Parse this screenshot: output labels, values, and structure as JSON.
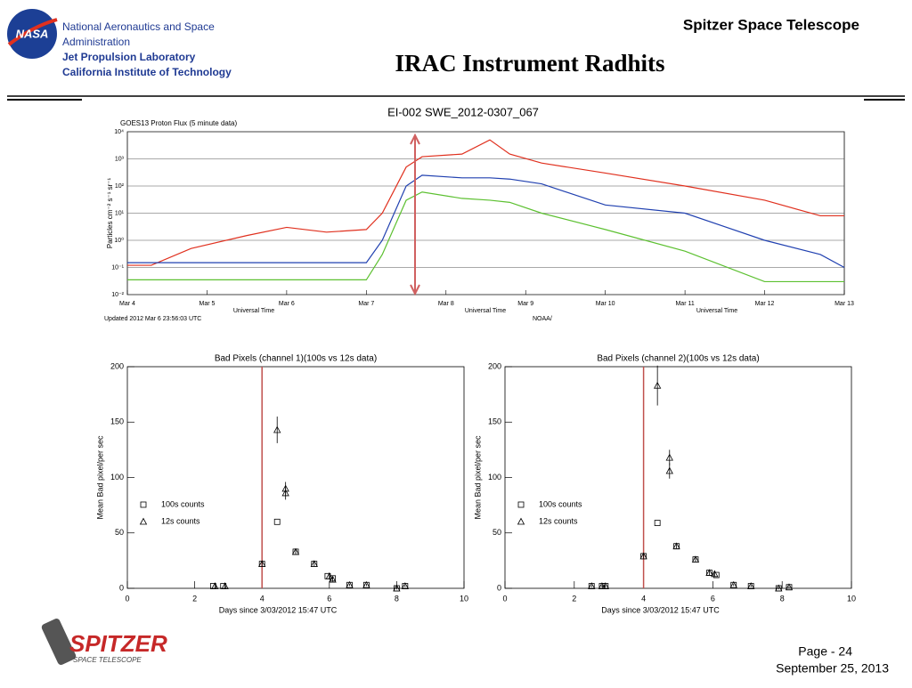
{
  "header": {
    "org": [
      "National Aeronautics and Space",
      "Administration",
      "Jet Propulsion Laboratory",
      "California Institute of Technology"
    ],
    "logo": "NASA",
    "mission": "Spitzer Space Telescope",
    "title": "IRAC Instrument Radhits",
    "subtitle": "EI-002 SWE_2012-0307_067"
  },
  "footer": {
    "logo": "SPITZER",
    "logo_sub": "SPACE TELESCOPE",
    "page": "Page - 24",
    "date": "September 25, 2013"
  },
  "chart_data": [
    {
      "type": "line",
      "title": "GOES13 Proton Flux (5 minute data)",
      "y_label": "Particles cm⁻² s⁻¹ sr⁻¹",
      "x_label": "Universal Time",
      "note": "Updated 2012 Mar 6 23:56:03 UTC",
      "source": "NOAA/",
      "log_y": true,
      "x": [
        4,
        4.3,
        4.8,
        5.5,
        6,
        6.5,
        7,
        7.2,
        7.5,
        7.7,
        8.2,
        8.55,
        8.8,
        9.2,
        10,
        11,
        12,
        12.7,
        13
      ],
      "series": [
        {
          "color": "#e0301e",
          "values": [
            0.12,
            0.12,
            0.5,
            1.5,
            3,
            2,
            2.5,
            10,
            500,
            1200,
            1500,
            5000,
            1500,
            700,
            300,
            100,
            30,
            8,
            8
          ]
        },
        {
          "color": "#2040b0",
          "values": [
            0.15,
            0.15,
            0.15,
            0.15,
            0.15,
            0.15,
            0.15,
            1,
            100,
            250,
            200,
            200,
            180,
            120,
            20,
            10,
            1,
            0.3,
            0.1
          ]
        },
        {
          "color": "#5cc030",
          "values": [
            0.035,
            0.035,
            0.035,
            0.035,
            0.035,
            0.035,
            0.035,
            0.3,
            30,
            60,
            35,
            30,
            25,
            10,
            2.5,
            0.4,
            0.03,
            0.03,
            0.03
          ]
        }
      ],
      "xlim": [
        4,
        13
      ],
      "xticks": [
        {
          "value": 4,
          "label": "Mar 4"
        },
        {
          "value": 5,
          "label": "Mar 5"
        },
        {
          "value": 6,
          "label": "Mar 6"
        },
        {
          "value": 7,
          "label": "Mar 7"
        },
        {
          "value": 8,
          "label": "Mar 8"
        },
        {
          "value": 9,
          "label": "Mar 9"
        },
        {
          "value": 10,
          "label": "Mar 10"
        },
        {
          "value": 11,
          "label": "Mar 11"
        },
        {
          "value": 12,
          "label": "Mar 12"
        },
        {
          "value": 13,
          "label": "Mar 13"
        }
      ],
      "ylim": [
        0.01,
        10000
      ],
      "yticks": [
        {
          "value": 10000,
          "label": "10⁴"
        },
        {
          "value": 1000,
          "label": "10³"
        },
        {
          "value": 100,
          "label": "10²"
        },
        {
          "value": 10,
          "label": "10¹"
        },
        {
          "value": 1,
          "label": "10⁰"
        },
        {
          "value": 0.1,
          "label": "10⁻¹"
        },
        {
          "value": 0.01,
          "label": "10⁻²"
        }
      ],
      "grid": true
    },
    {
      "type": "scatter",
      "title": "Bad Pixels (channel 1)(100s vs 12s data)",
      "x_label": "Days since 3/03/2012 15:47 UTC",
      "y_label": "Mean Bad pixel/per sec",
      "xlim": [
        0,
        10
      ],
      "xticks": [
        0,
        2,
        4,
        6,
        8,
        10
      ],
      "ylim": [
        0,
        200
      ],
      "yticks": [
        0,
        50,
        100,
        150,
        200
      ],
      "vline": 4,
      "vline_color": "#c0504d",
      "series": [
        {
          "name": "100s counts",
          "marker": "square",
          "x": [
            2.55,
            2.85,
            4.0,
            4.45,
            5.0,
            5.55,
            5.95,
            6.1,
            6.6,
            7.1,
            8.0,
            8.25
          ],
          "values": [
            2,
            2,
            22,
            60,
            33,
            22,
            11,
            9,
            3,
            3,
            0,
            2
          ]
        },
        {
          "name": "12s counts",
          "marker": "triangle",
          "x": [
            2.6,
            2.9,
            4.0,
            4.45,
            4.7,
            4.7,
            5.0,
            5.55,
            6.0,
            6.1,
            6.6,
            7.1,
            8.0,
            8.25
          ],
          "values": [
            2,
            2,
            22,
            143,
            90,
            86,
            33,
            22,
            11,
            8,
            3,
            3,
            0,
            2
          ],
          "errors": [
            2,
            2,
            2,
            12,
            6,
            6,
            2,
            2,
            2,
            2,
            1,
            1,
            1,
            1
          ]
        }
      ]
    },
    {
      "type": "scatter",
      "title": "Bad Pixels (channel 2)(100s vs 12s data)",
      "x_label": "Days since 3/03/2012 15:47 UTC",
      "y_label": "Mean Bad pixel/per sec",
      "xlim": [
        0,
        10
      ],
      "xticks": [
        0,
        2,
        4,
        6,
        8,
        10
      ],
      "ylim": [
        0,
        200
      ],
      "yticks": [
        0,
        50,
        100,
        150,
        200
      ],
      "vline": 4,
      "vline_color": "#c0504d",
      "series": [
        {
          "name": "100s counts",
          "marker": "square",
          "x": [
            2.5,
            2.8,
            2.9,
            4.0,
            4.4,
            4.95,
            5.5,
            5.9,
            6.1,
            6.6,
            7.1,
            7.9,
            8.2
          ],
          "values": [
            2,
            2,
            2,
            29,
            59,
            38,
            26,
            14,
            12,
            3,
            2,
            0,
            1
          ]
        },
        {
          "name": "12s counts",
          "marker": "triangle",
          "x": [
            2.5,
            2.8,
            2.9,
            4.0,
            4.4,
            4.75,
            4.75,
            4.95,
            5.5,
            5.9,
            6.05,
            6.6,
            7.1,
            7.9,
            8.2
          ],
          "values": [
            2,
            2,
            2,
            29,
            183,
            118,
            106,
            38,
            26,
            14,
            13,
            3,
            2,
            0,
            1
          ],
          "errors": [
            1,
            1,
            1,
            2,
            18,
            7,
            7,
            2,
            2,
            2,
            2,
            1,
            1,
            1,
            1
          ]
        }
      ]
    }
  ]
}
